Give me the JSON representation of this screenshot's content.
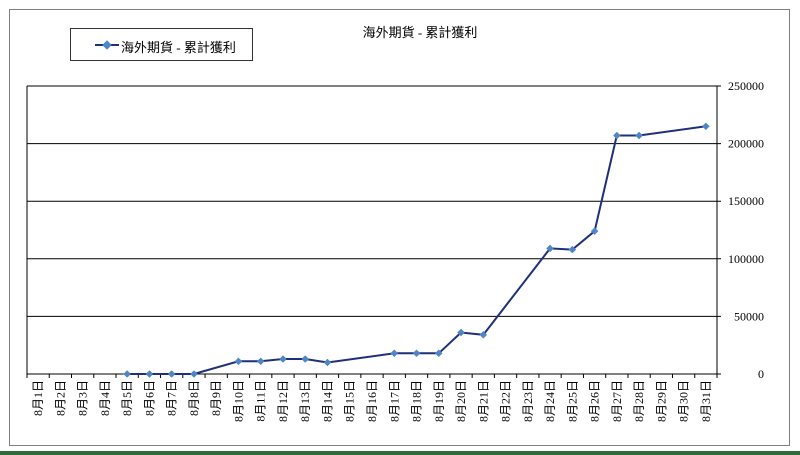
{
  "legend": {
    "label": "海外期貨 - 累計獲利"
  },
  "colors": {
    "line": "#1f2f7a",
    "marker": "#4f86c6",
    "grid": "#000000",
    "frame": "#7f7f7f"
  },
  "chart_data": {
    "type": "line",
    "title": "海外期貨 - 累計獲利",
    "xlabel": "",
    "ylabel": "",
    "ylim": [
      0,
      250000
    ],
    "yticks": [
      0,
      50000,
      100000,
      150000,
      200000,
      250000
    ],
    "grid": true,
    "legend_position": "top-left",
    "y_axis_side": "right",
    "categories": [
      "8月1日",
      "8月2日",
      "8月3日",
      "8月4日",
      "8月5日",
      "8月6日",
      "8月7日",
      "8月8日",
      "8月9日",
      "8月10日",
      "8月11日",
      "8月12日",
      "8月13日",
      "8月14日",
      "8月15日",
      "8月16日",
      "8月17日",
      "8月18日",
      "8月19日",
      "8月20日",
      "8月21日",
      "8月22日",
      "8月23日",
      "8月24日",
      "8月25日",
      "8月26日",
      "8月27日",
      "8月28日",
      "8月29日",
      "8月30日",
      "8月31日"
    ],
    "series": [
      {
        "name": "海外期貨 - 累計獲利",
        "values": [
          null,
          null,
          null,
          null,
          0,
          0,
          0,
          0,
          null,
          11000,
          11000,
          13000,
          13000,
          10000,
          null,
          null,
          18000,
          18000,
          18000,
          36000,
          34000,
          null,
          null,
          109000,
          108000,
          124000,
          207000,
          207000,
          null,
          null,
          215000
        ]
      }
    ]
  }
}
